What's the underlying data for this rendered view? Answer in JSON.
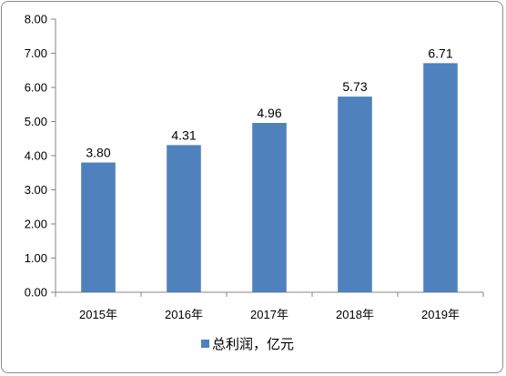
{
  "chart_data": {
    "type": "bar",
    "categories": [
      "2015年",
      "2016年",
      "2017年",
      "2018年",
      "2019年"
    ],
    "series": [
      {
        "name": "总利润，亿元",
        "values": [
          3.8,
          4.31,
          4.96,
          5.73,
          6.71
        ],
        "color": "#4f81bd"
      }
    ],
    "data_labels": [
      "3.80",
      "4.31",
      "4.96",
      "5.73",
      "6.71"
    ],
    "y_ticks": [
      "0.00",
      "1.00",
      "2.00",
      "3.00",
      "4.00",
      "5.00",
      "6.00",
      "7.00",
      "8.00"
    ],
    "ylim": [
      0,
      8
    ],
    "grid": false,
    "legend_position": "bottom",
    "title": "",
    "xlabel": "",
    "ylabel": ""
  }
}
